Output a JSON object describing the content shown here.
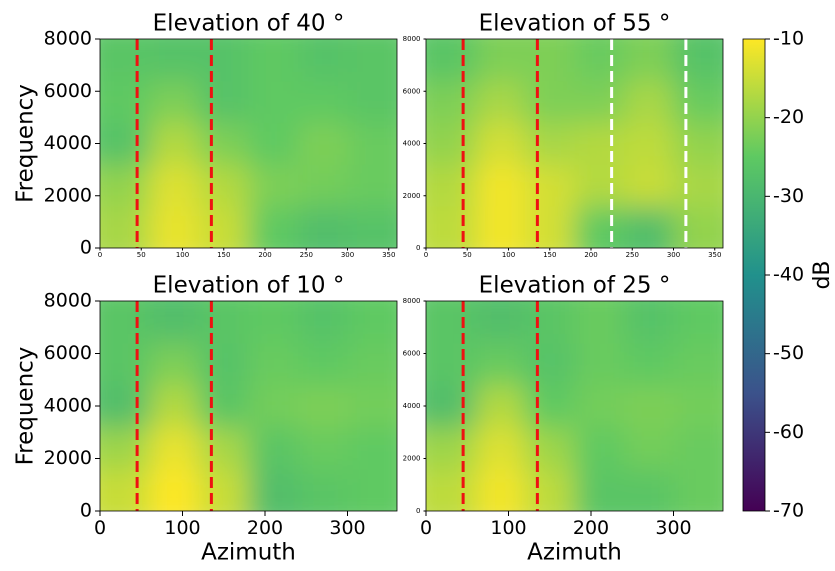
{
  "chart_data": [
    {
      "type": "heatmap",
      "title": "Elevation of 40 °",
      "ylabel": "Frequency",
      "xlim": [
        0,
        360
      ],
      "xticks": [
        0,
        50,
        100,
        150,
        200,
        250,
        300,
        350
      ],
      "ylim": [
        0,
        8000
      ],
      "yticks": [
        0,
        2000,
        4000,
        6000,
        8000
      ],
      "xbins": [
        0,
        60,
        120,
        180,
        240,
        300,
        360
      ],
      "ybins": [
        0,
        1600,
        3200,
        4800,
        6400,
        8000
      ],
      "values": [
        [
          -18,
          -12,
          -15,
          -25,
          -28,
          -27
        ],
        [
          -20,
          -13,
          -17,
          -22,
          -23,
          -24
        ],
        [
          -27,
          -17,
          -22,
          -25,
          -22,
          -24
        ],
        [
          -25,
          -22,
          -27,
          -25,
          -25,
          -26
        ],
        [
          -26,
          -27,
          -27,
          -25,
          -27,
          -26
        ]
      ],
      "vlines": [
        {
          "x": 45,
          "color": "#ee1111"
        },
        {
          "x": 135,
          "color": "#ee1111"
        }
      ]
    },
    {
      "type": "heatmap",
      "title": "Elevation of 55 °",
      "xlim": [
        0,
        360
      ],
      "xticks": [
        0,
        50,
        100,
        150,
        200,
        250,
        300,
        350
      ],
      "ylim": [
        0,
        8000
      ],
      "yticks": [
        0,
        2000,
        4000,
        6000,
        8000
      ],
      "xbins": [
        0,
        60,
        120,
        180,
        240,
        300,
        360
      ],
      "ybins": [
        0,
        1600,
        3200,
        4800,
        6400,
        8000
      ],
      "values": [
        [
          -16,
          -11,
          -14,
          -25,
          -28,
          -20
        ],
        [
          -17,
          -11,
          -14,
          -17,
          -15,
          -18
        ],
        [
          -20,
          -14,
          -18,
          -17,
          -16,
          -20
        ],
        [
          -22,
          -18,
          -22,
          -22,
          -18,
          -24
        ],
        [
          -26,
          -22,
          -22,
          -24,
          -22,
          -27
        ]
      ],
      "vlines": [
        {
          "x": 45,
          "color": "#ee1111"
        },
        {
          "x": 135,
          "color": "#ee1111"
        },
        {
          "x": 225,
          "color": "#ffffff"
        },
        {
          "x": 315,
          "color": "#ffffff"
        }
      ]
    },
    {
      "type": "heatmap",
      "title": "Elevation of 10 °",
      "ylabel": "Frequency",
      "xlabel": "Azimuth",
      "xlim": [
        0,
        360
      ],
      "xticks": [
        0,
        100,
        200,
        300
      ],
      "ylim": [
        0,
        8000
      ],
      "yticks": [
        0,
        2000,
        4000,
        6000,
        8000
      ],
      "xbins": [
        0,
        60,
        120,
        180,
        240,
        300,
        360
      ],
      "ybins": [
        0,
        1600,
        3200,
        4800,
        6400,
        8000
      ],
      "values": [
        [
          -15,
          -10,
          -15,
          -28,
          -26,
          -25
        ],
        [
          -19,
          -12,
          -18,
          -26,
          -24,
          -25
        ],
        [
          -28,
          -17,
          -26,
          -23,
          -22,
          -23
        ],
        [
          -26,
          -22,
          -27,
          -24,
          -25,
          -24
        ],
        [
          -26,
          -28,
          -26,
          -25,
          -27,
          -25
        ]
      ],
      "vlines": [
        {
          "x": 45,
          "color": "#ee1111"
        },
        {
          "x": 135,
          "color": "#ee1111"
        }
      ]
    },
    {
      "type": "heatmap",
      "title": "Elevation of 25 °",
      "xlabel": "Azimuth",
      "xlim": [
        0,
        360
      ],
      "xticks": [
        0,
        100,
        200,
        300
      ],
      "ylim": [
        0,
        8000
      ],
      "yticks": [
        0,
        2000,
        4000,
        6000,
        8000
      ],
      "xbins": [
        0,
        60,
        120,
        180,
        240,
        300,
        360
      ],
      "ybins": [
        0,
        1600,
        3200,
        4800,
        6400,
        8000
      ],
      "values": [
        [
          -16,
          -11,
          -16,
          -26,
          -26,
          -24
        ],
        [
          -19,
          -13,
          -19,
          -25,
          -23,
          -24
        ],
        [
          -28,
          -17,
          -25,
          -23,
          -22,
          -23
        ],
        [
          -26,
          -24,
          -27,
          -24,
          -25,
          -24
        ],
        [
          -26,
          -28,
          -26,
          -24,
          -27,
          -25
        ]
      ],
      "vlines": [
        {
          "x": 45,
          "color": "#ee1111"
        },
        {
          "x": 135,
          "color": "#ee1111"
        }
      ]
    },
    {
      "type": "colorbar",
      "label": "dB",
      "lim": [
        -70,
        -10
      ],
      "ticks": [
        -70,
        -60,
        -50,
        -40,
        -30,
        -20,
        -10
      ]
    }
  ]
}
